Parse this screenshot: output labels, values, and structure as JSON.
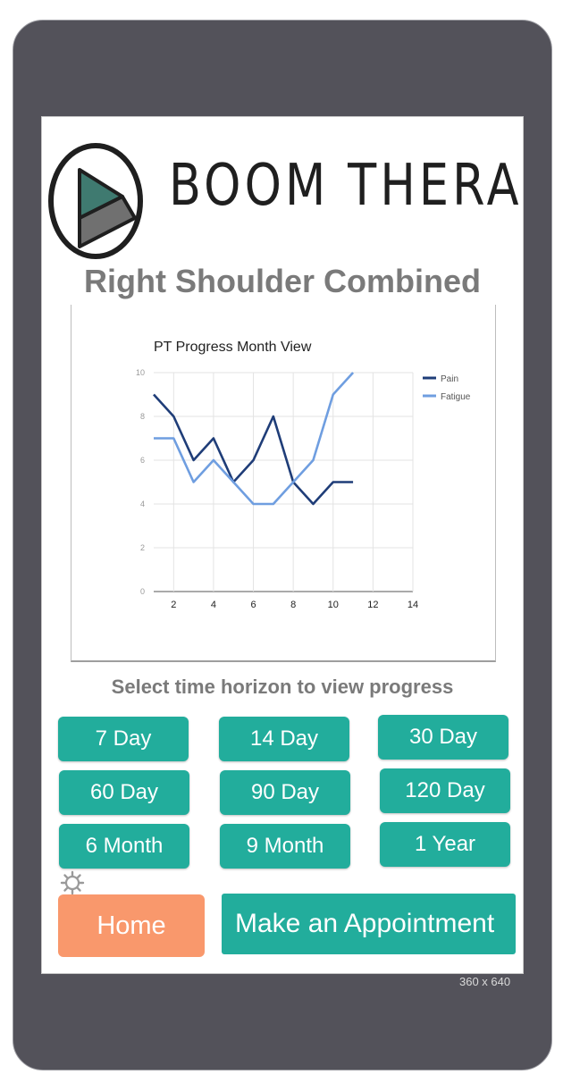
{
  "brand": {
    "name": "BOOM THERAPY"
  },
  "page": {
    "title": "Right Shoulder Combined",
    "prompt": "Select time horizon to view progress"
  },
  "time_buttons": [
    "7 Day",
    "14 Day",
    "30 Day",
    "60 Day",
    "90 Day",
    "120 Day",
    "6 Month",
    "9 Month",
    "1 Year"
  ],
  "nav": {
    "home_label": "Home",
    "appointment_label": "Make an Appointment",
    "settings_icon": "gear-icon"
  },
  "device": {
    "size_label": "360 x 640"
  },
  "colors": {
    "teal": "#22ad9c",
    "orange": "#f9986c",
    "pain": "#1f3d78",
    "fatigue": "#6f9ee0",
    "title_gray": "#7a7a7a"
  },
  "chart_data": {
    "type": "line",
    "title": "PT Progress Month View",
    "xlim": [
      1,
      14
    ],
    "ylim": [
      0,
      10
    ],
    "xticks": [
      2,
      4,
      6,
      8,
      10,
      12,
      14
    ],
    "yticks": [
      0,
      2,
      4,
      6,
      8,
      10
    ],
    "grid": true,
    "legend": "right",
    "series": [
      {
        "name": "Pain",
        "color": "#1f3d78",
        "x": [
          1,
          2,
          3,
          4,
          5,
          6,
          7,
          8,
          9,
          10,
          11
        ],
        "y": [
          9,
          8,
          6,
          7,
          5,
          6,
          8,
          5,
          4,
          5,
          5
        ]
      },
      {
        "name": "Fatigue",
        "color": "#6f9ee0",
        "x": [
          1,
          2,
          3,
          4,
          5,
          6,
          7,
          8,
          9,
          10,
          11
        ],
        "y": [
          7,
          7,
          5,
          6,
          5,
          4,
          4,
          5,
          6,
          9,
          10
        ]
      }
    ]
  }
}
